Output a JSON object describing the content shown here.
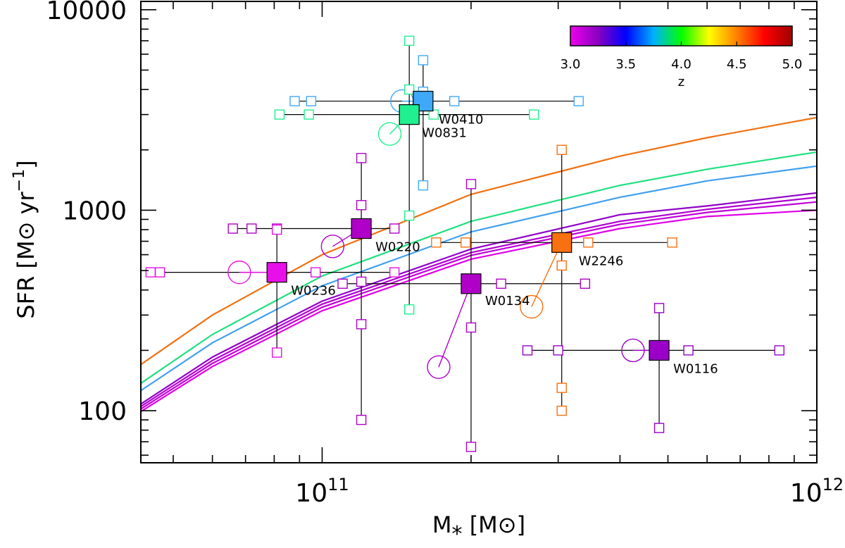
{
  "chart_data": {
    "type": "scatter",
    "xlabel": "M",
    "xlabel_sub": "*",
    "xlabel_unit": "[M⊙]",
    "ylabel": "SFR",
    "ylabel_unit_pre": "[M⊙ yr",
    "ylabel_unit_sup": "−1",
    "ylabel_unit_post": "]",
    "xscale": "log",
    "yscale": "log",
    "xlim": [
      43000000000.0,
      1000000000000.0
    ],
    "ylim": [
      55,
      11000
    ],
    "x_tick_labels": [
      {
        "value": 100000000000.0,
        "base": "10",
        "exp": "11"
      },
      {
        "value": 1000000000000.0,
        "base": "10",
        "exp": "12"
      }
    ],
    "y_tick_labels": [
      {
        "value": 100,
        "label": "100"
      },
      {
        "value": 1000,
        "label": "1000"
      },
      {
        "value": 10000,
        "label": "10000"
      }
    ],
    "colorbar": {
      "label": "z",
      "range": [
        3.0,
        5.0
      ],
      "tick_labels": [
        "3.0",
        "3.5",
        "4.0",
        "4.5",
        "5.0"
      ],
      "tick_values": [
        3.0,
        3.5,
        4.0,
        4.5,
        5.0
      ],
      "colors": [
        "#ee00ee",
        "#8a00c0",
        "#0000ff",
        "#00b0ff",
        "#00ff00",
        "#ffff00",
        "#ff8000",
        "#ff0000",
        "#a00000"
      ]
    },
    "main_sequence_curves": [
      {
        "z": 4.59,
        "color": "#f07010",
        "points": [
          [
            43000000000.0,
            170
          ],
          [
            60000000000.0,
            300
          ],
          [
            100000000000.0,
            600
          ],
          [
            200000000000.0,
            1200
          ],
          [
            400000000000.0,
            1860
          ],
          [
            600000000000.0,
            2300
          ],
          [
            1000000000000.0,
            2900
          ]
        ]
      },
      {
        "z": 4.02,
        "color": "#20e080",
        "points": [
          [
            43000000000.0,
            137
          ],
          [
            60000000000.0,
            240
          ],
          [
            100000000000.0,
            470
          ],
          [
            200000000000.0,
            880
          ],
          [
            400000000000.0,
            1330
          ],
          [
            600000000000.0,
            1600
          ],
          [
            1000000000000.0,
            1950
          ]
        ]
      },
      {
        "z": 3.75,
        "color": "#40a0f0",
        "points": [
          [
            43000000000.0,
            126
          ],
          [
            60000000000.0,
            218
          ],
          [
            100000000000.0,
            420
          ],
          [
            200000000000.0,
            780
          ],
          [
            400000000000.0,
            1160
          ],
          [
            600000000000.0,
            1400
          ],
          [
            1000000000000.0,
            1660
          ]
        ]
      },
      {
        "z": 3.28,
        "color": "#9000c8",
        "points": [
          [
            43000000000.0,
            108
          ],
          [
            60000000000.0,
            185
          ],
          [
            100000000000.0,
            352
          ],
          [
            200000000000.0,
            640
          ],
          [
            400000000000.0,
            950
          ],
          [
            600000000000.0,
            1050
          ],
          [
            1000000000000.0,
            1220
          ]
        ]
      },
      {
        "z": 3.2,
        "color": "#b000d0",
        "points": [
          [
            43000000000.0,
            105
          ],
          [
            60000000000.0,
            178
          ],
          [
            100000000000.0,
            340
          ],
          [
            200000000000.0,
            615
          ],
          [
            400000000000.0,
            880
          ],
          [
            600000000000.0,
            1010
          ],
          [
            1000000000000.0,
            1160
          ]
        ]
      },
      {
        "z": 3.13,
        "color": "#c000d8",
        "points": [
          [
            43000000000.0,
            102
          ],
          [
            60000000000.0,
            172
          ],
          [
            100000000000.0,
            328
          ],
          [
            200000000000.0,
            595
          ],
          [
            400000000000.0,
            850
          ],
          [
            600000000000.0,
            975
          ],
          [
            1000000000000.0,
            1100
          ]
        ]
      },
      {
        "z": 3.05,
        "color": "#e000e8",
        "points": [
          [
            43000000000.0,
            99
          ],
          [
            60000000000.0,
            166
          ],
          [
            100000000000.0,
            315
          ],
          [
            200000000000.0,
            570
          ],
          [
            400000000000.0,
            810
          ],
          [
            600000000000.0,
            930
          ],
          [
            1000000000000.0,
            1000
          ]
        ]
      }
    ],
    "galaxies": [
      {
        "name": "W0410",
        "z": 3.63,
        "color": "#40a8f8",
        "mass": 160000000000.0,
        "sfr": 3500,
        "mass_alt": [
          88000000000.0,
          95000000000.0,
          185000000000.0,
          330000000000.0
        ],
        "sfr_alt": [
          1330,
          3900,
          5600
        ],
        "circle": [
          145000000000.0,
          3500
        ]
      },
      {
        "name": "W0831",
        "z": 3.91,
        "color": "#20f090",
        "mass": 150000000000.0,
        "sfr": 3000,
        "mass_alt": [
          82000000000.0,
          94000000000.0,
          168000000000.0,
          268000000000.0
        ],
        "sfr_alt": [
          320,
          940,
          4000,
          7000
        ],
        "circle": [
          137000000000.0,
          2400
        ]
      },
      {
        "name": "W0220",
        "z": 3.14,
        "color": "#b000c8",
        "mass": 120000000000.0,
        "sfr": 810,
        "mass_alt": [
          66000000000.0,
          72000000000.0,
          81000000000.0,
          140000000000.0
        ],
        "sfr_alt": [
          90,
          270,
          440,
          1060,
          1820
        ],
        "circle": [
          105000000000.0,
          660
        ]
      },
      {
        "name": "W0236",
        "z": 3.03,
        "color": "#e810e8",
        "mass": 81000000000.0,
        "sfr": 490,
        "mass_alt": [
          45000000000.0,
          47000000000.0,
          97000000000.0,
          140000000000.0
        ],
        "sfr_alt": [
          195,
          800
        ],
        "circle": [
          68000000000.0,
          490
        ]
      },
      {
        "name": "W0134",
        "z": 3.18,
        "color": "#b000c8",
        "mass": 200000000000.0,
        "sfr": 430,
        "mass_alt": [
          110000000000.0,
          230000000000.0,
          340000000000.0
        ],
        "sfr_alt": [
          66,
          260,
          1350
        ],
        "circle": [
          172000000000.0,
          165
        ]
      },
      {
        "name": "W2246",
        "z": 4.59,
        "color": "#f87010",
        "mass": 305000000000.0,
        "sfr": 690,
        "mass_alt": [
          170000000000.0,
          195000000000.0,
          345000000000.0,
          510000000000.0
        ],
        "sfr_alt": [
          100,
          130,
          530,
          2000
        ],
        "circle": [
          265000000000.0,
          330
        ]
      },
      {
        "name": "W0116",
        "z": 3.17,
        "color": "#9a00c8",
        "mass": 480000000000.0,
        "sfr": 200,
        "mass_alt": [
          260000000000.0,
          300000000000.0,
          550000000000.0,
          840000000000.0
        ],
        "sfr_alt": [
          82,
          325
        ],
        "circle": [
          425000000000.0,
          200
        ]
      }
    ]
  }
}
